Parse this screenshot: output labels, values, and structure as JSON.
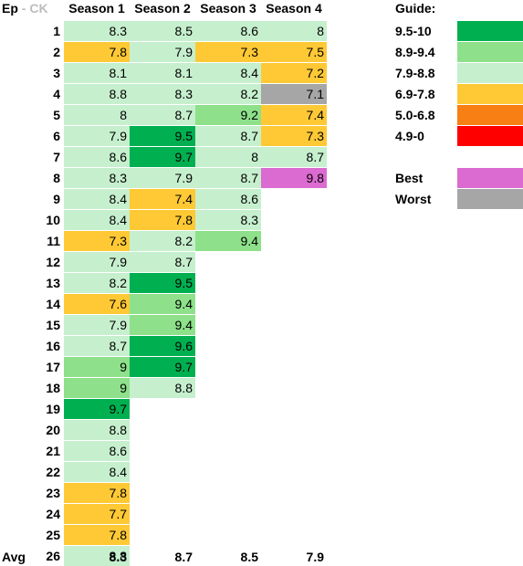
{
  "header": {
    "ep_label": "Ep",
    "ep_separator": " - ",
    "ep_sub": "CK"
  },
  "chart_data": {
    "type": "table",
    "columns": [
      "Season 1",
      "Season 2",
      "Season 3",
      "Season 4"
    ],
    "episodes": [
      "1",
      "2",
      "3",
      "4",
      "5",
      "6",
      "7",
      "8",
      "9",
      "10",
      "11",
      "12",
      "13",
      "14",
      "15",
      "16",
      "17",
      "18",
      "19",
      "20",
      "21",
      "22",
      "23",
      "24",
      "25",
      "26"
    ],
    "seasons": [
      {
        "name": "Season 1",
        "ratings": [
          "8.3",
          "7.8",
          "8.1",
          "8.8",
          "8",
          "7.9",
          "8.6",
          "8.3",
          "8.4",
          "8.4",
          "7.3",
          "7.9",
          "8.2",
          "7.6",
          "7.9",
          "8.7",
          "9",
          "9",
          "9.7",
          "8.8",
          "8.6",
          "8.4",
          "7.8",
          "7.7",
          "7.8",
          "8.8"
        ],
        "average": "8.3"
      },
      {
        "name": "Season 2",
        "ratings": [
          "8.5",
          "7.9",
          "8.1",
          "8.3",
          "8.7",
          "9.5",
          "9.7",
          "7.9",
          "7.4",
          "7.8",
          "8.2",
          "8.7",
          "9.5",
          "9.4",
          "9.4",
          "9.6",
          "9.7",
          "8.8"
        ],
        "average": "8.7"
      },
      {
        "name": "Season 3",
        "ratings": [
          "8.6",
          "7.3",
          "8.4",
          "8.2",
          "9.2",
          "8.7",
          "8",
          "8.7",
          "8.6",
          "8.3",
          "9.4"
        ],
        "average": "8.5"
      },
      {
        "name": "Season 4",
        "ratings": [
          "8",
          "7.5",
          "7.2",
          "7.1",
          "7.4",
          "7.3",
          "8.7",
          "9.8"
        ],
        "average": "7.9"
      }
    ],
    "avg_label": "Avg",
    "best": {
      "season": 4,
      "episode": 8,
      "value": "9.8"
    },
    "worst": {
      "season": 4,
      "episode": 4,
      "value": "7.1"
    }
  },
  "guide": {
    "title": "Guide:",
    "ranges": [
      {
        "label": "9.5-10",
        "min": 9.5,
        "color": "#00b050"
      },
      {
        "label": "8.9-9.4",
        "min": 8.9,
        "color": "#8ee18a"
      },
      {
        "label": "7.9-8.8",
        "min": 7.9,
        "color": "#c6efce"
      },
      {
        "label": "6.9-7.8",
        "min": 6.9,
        "color": "#ffc935"
      },
      {
        "label": "5.0-6.8",
        "min": 5.0,
        "color": "#f77f14"
      },
      {
        "label": "4.9-0",
        "min": 0,
        "color": "#ff0000"
      }
    ],
    "best_label": "Best",
    "best_color": "#db6bd0",
    "worst_label": "Worst",
    "worst_color": "#a6a6a6"
  }
}
